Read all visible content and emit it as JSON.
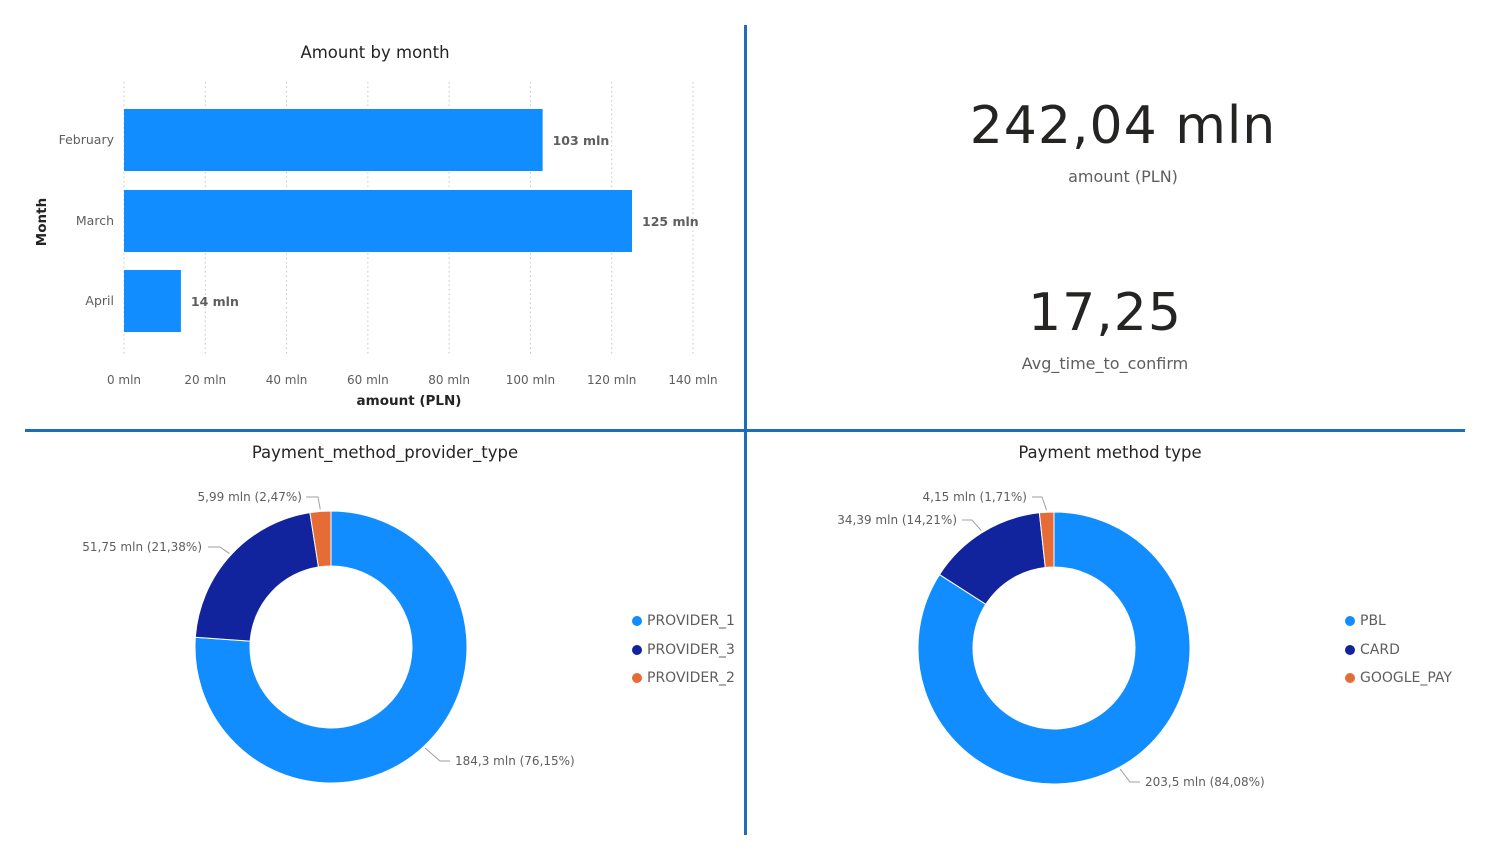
{
  "kpis": {
    "amount": {
      "value": "242,04 mln",
      "label": "amount (PLN)"
    },
    "avg_time": {
      "value": "17,25",
      "label": "Avg_time_to_confirm"
    }
  },
  "colors": {
    "blue": "#118dff",
    "navy": "#12239e",
    "orange": "#e66c37",
    "divider": "#1a6fb8"
  },
  "chart_data": [
    {
      "type": "bar",
      "orientation": "horizontal",
      "title": "Amount by month",
      "xlabel": "amount (PLN)",
      "ylabel": "Month",
      "categories": [
        "February",
        "March",
        "April"
      ],
      "values": [
        103,
        125,
        14
      ],
      "data_labels": [
        "103 mln",
        "125 mln",
        "14 mln"
      ],
      "xlim": [
        0,
        140
      ],
      "ticks": [
        0,
        20,
        40,
        60,
        80,
        100,
        120,
        140
      ],
      "tick_labels": [
        "0 mln",
        "20 mln",
        "40 mln",
        "60 mln",
        "80 mln",
        "100 mln",
        "120 mln",
        "140 mln"
      ],
      "grid": true
    },
    {
      "type": "pie",
      "donut": true,
      "title": "Payment_method_provider_type",
      "categories": [
        "PROVIDER_1",
        "PROVIDER_3",
        "PROVIDER_2"
      ],
      "values": [
        184.3,
        51.75,
        5.99
      ],
      "data_labels": [
        "184,3 mln (76,15%)",
        "51,75 mln (21,38%)",
        "5,99 mln (2,47%)"
      ],
      "legend": "right"
    },
    {
      "type": "pie",
      "donut": true,
      "title": "Payment method type",
      "categories": [
        "PBL",
        "CARD",
        "GOOGLE_PAY"
      ],
      "values": [
        203.5,
        34.39,
        4.15
      ],
      "data_labels": [
        "203,5 mln (84,08%)",
        "34,39 mln (14,21%)",
        "4,15 mln (1,71%)"
      ],
      "legend": "right"
    }
  ]
}
